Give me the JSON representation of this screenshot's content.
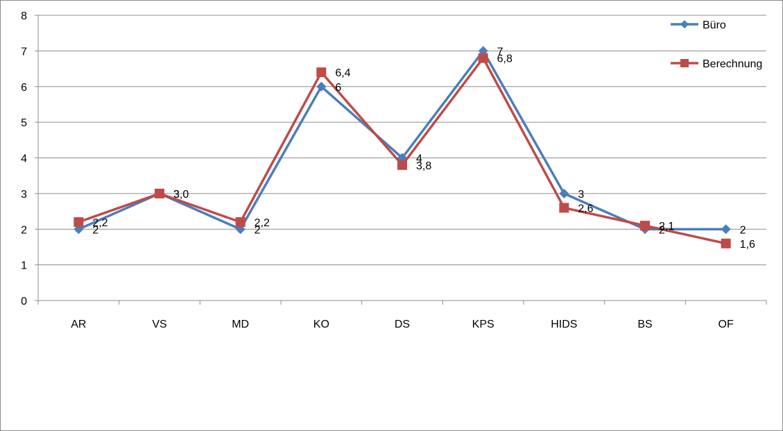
{
  "chart_data": {
    "type": "line",
    "title": "",
    "xlabel": "",
    "ylabel": "",
    "categories": [
      "AR",
      "VS",
      "MD",
      "KO",
      "DS",
      "KPS",
      "HIDS",
      "BS",
      "OF"
    ],
    "ylim": [
      0,
      8
    ],
    "yticks": [
      "0",
      "1",
      "2",
      "3",
      "4",
      "5",
      "6",
      "7",
      "8"
    ],
    "grid": "horizontal",
    "legend_position": "top-right",
    "series": [
      {
        "name": "Büro",
        "color": "#4a7ebb",
        "marker": "diamond",
        "values": [
          2,
          3,
          2,
          6,
          4,
          7,
          3,
          2,
          2
        ],
        "labels": [
          "2",
          "3",
          "2",
          "6",
          "4",
          "7",
          "3",
          "2",
          "2"
        ]
      },
      {
        "name": "Berechnung",
        "color": "#be4b48",
        "marker": "square",
        "values": [
          2.2,
          3.0,
          2.2,
          6.4,
          3.8,
          6.8,
          2.6,
          2.1,
          1.6
        ],
        "labels": [
          "2,2",
          "3,0",
          "2,2",
          "6,4",
          "3,8",
          "6,8",
          "2,6",
          "2,1",
          "1,6"
        ]
      }
    ]
  }
}
